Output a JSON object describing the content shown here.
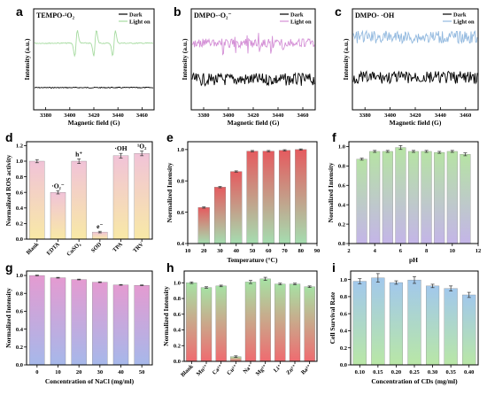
{
  "chart_data": [
    {
      "panel": "a",
      "type": "line",
      "title": "TEMPO-¹O₂",
      "xlabel": "Magnetic field (G)",
      "ylabel": "Intensity (a.u.)",
      "xlim": [
        3370,
        3470
      ],
      "xticks": [
        3380,
        3400,
        3420,
        3440,
        3460
      ],
      "legend_position": "top-right",
      "series": [
        {
          "name": "Dark",
          "color": "#000000",
          "shape": "flat",
          "level": 0.22
        },
        {
          "name": "Light on",
          "color": "#a6dba0",
          "shape": "tempo",
          "level": 0.66
        }
      ]
    },
    {
      "panel": "b",
      "type": "line",
      "title": "DMPO-·O₂⁻",
      "xlabel": "Magnetic field (G)",
      "ylabel": "Intensity (a.u.)",
      "xlim": [
        3370,
        3470
      ],
      "xticks": [
        3380,
        3400,
        3420,
        3440,
        3460
      ],
      "legend_position": "top-right",
      "series": [
        {
          "name": "Dark",
          "color": "#000000",
          "shape": "noise",
          "level": 0.3
        },
        {
          "name": "Light on",
          "color": "#d48fd6",
          "shape": "dmpo",
          "level": 0.66
        }
      ]
    },
    {
      "panel": "c",
      "type": "line",
      "title": "DMPO- ·OH",
      "xlabel": "Magnetic field (G)",
      "ylabel": "Intensity (a.u.)",
      "xlim": [
        3370,
        3470
      ],
      "xticks": [
        3380,
        3400,
        3420,
        3440,
        3460
      ],
      "legend_position": "top-right",
      "series": [
        {
          "name": "Dark",
          "color": "#000000",
          "shape": "noise",
          "level": 0.32
        },
        {
          "name": "Light on",
          "color": "#92b9df",
          "shape": "noise",
          "level": 0.72
        }
      ]
    },
    {
      "panel": "d",
      "type": "bar",
      "ylabel": "Normalized ROS activity",
      "ylim": [
        0,
        1.25
      ],
      "yticks": [
        0.0,
        0.2,
        0.4,
        0.6,
        0.8,
        1.0,
        1.2
      ],
      "ytick_labels": [
        "0.0",
        "0.2",
        "0.4",
        "0.6",
        "0.8",
        "1.0",
        "1.2"
      ],
      "categories": [
        "Blank",
        "EDTA",
        "CuSO₄",
        "SOD",
        "TPA",
        "TRV"
      ],
      "values": [
        1.0,
        0.6,
        1.0,
        0.09,
        1.07,
        1.1
      ],
      "errors": [
        0.02,
        0.02,
        0.03,
        0.01,
        0.03,
        0.03
      ],
      "gradient": [
        "#f1c3d8",
        "#f8e9a6"
      ],
      "rotate_labels": true,
      "annotations": [
        {
          "i": 1,
          "text": "·O₂⁻"
        },
        {
          "i": 2,
          "text": "h⁺"
        },
        {
          "i": 3,
          "text": "e⁻"
        },
        {
          "i": 4,
          "text": "·OH"
        },
        {
          "i": 5,
          "text": "¹O₂"
        }
      ]
    },
    {
      "panel": "e",
      "type": "bar",
      "xlabel": "Temperature (°C)",
      "ylabel": "Normalized Intensity",
      "xlim": [
        10,
        90
      ],
      "xticks": [
        10,
        20,
        30,
        40,
        50,
        60,
        70,
        80,
        90
      ],
      "ylim": [
        0.4,
        1.05
      ],
      "yticks": [
        0.4,
        0.6,
        0.8,
        1.0
      ],
      "ytick_labels": [
        "0.4",
        "0.6",
        "0.8",
        "1.0"
      ],
      "x": [
        20,
        30,
        40,
        50,
        60,
        70,
        80
      ],
      "values": [
        0.63,
        0.76,
        0.86,
        0.99,
        0.99,
        0.995,
        1.0
      ],
      "errors": [
        0.004,
        0.004,
        0.004,
        0.004,
        0.004,
        0.004,
        0.004
      ],
      "bar_width": 7,
      "gradient": [
        "#e55b5f",
        "#a5ddb0"
      ]
    },
    {
      "panel": "f",
      "type": "bar",
      "xlabel": "pH",
      "ylabel": "Normalized Intensity",
      "xlim": [
        2,
        12
      ],
      "xticks": [
        2,
        4,
        6,
        8,
        10,
        12
      ],
      "ylim": [
        0.0,
        1.05
      ],
      "yticks": [
        0.0,
        0.2,
        0.4,
        0.6,
        0.8,
        1.0
      ],
      "ytick_labels": [
        "0.0",
        "0.2",
        "0.4",
        "0.6",
        "0.8",
        "1.0"
      ],
      "x": [
        3,
        4,
        5,
        6,
        7,
        8,
        9,
        10,
        11
      ],
      "values": [
        0.87,
        0.95,
        0.95,
        0.99,
        0.95,
        0.95,
        0.94,
        0.95,
        0.92
      ],
      "errors": [
        0.01,
        0.01,
        0.01,
        0.02,
        0.01,
        0.01,
        0.01,
        0.01,
        0.015
      ],
      "bar_width": 0.8,
      "gradient": [
        "#b6e3a4",
        "#c4b5e8"
      ]
    },
    {
      "panel": "g",
      "type": "bar",
      "xlabel": "Concentration of NaCl (mg/ml)",
      "ylabel": "Normalized Intensity",
      "ylim": [
        0.0,
        1.05
      ],
      "yticks": [
        0.0,
        0.2,
        0.4,
        0.6,
        0.8,
        1.0
      ],
      "ytick_labels": [
        "0.0",
        "0.2",
        "0.4",
        "0.6",
        "0.8",
        "1.0"
      ],
      "categories": [
        "0",
        "10",
        "20",
        "30",
        "40",
        "50"
      ],
      "values": [
        1.0,
        0.975,
        0.955,
        0.925,
        0.895,
        0.89
      ],
      "errors": [
        0.004,
        0.004,
        0.004,
        0.004,
        0.004,
        0.004
      ],
      "gradient": [
        "#e49bd1",
        "#a6b8ea"
      ]
    },
    {
      "panel": "h",
      "type": "bar",
      "ylabel": "Normalized Intensity",
      "ylim": [
        0.0,
        1.15
      ],
      "yticks": [
        0.0,
        0.2,
        0.4,
        0.6,
        0.8,
        1.0
      ],
      "ytick_labels": [
        "0.0",
        "0.2",
        "0.4",
        "0.6",
        "0.8",
        "1.0"
      ],
      "categories": [
        "Blank",
        "Mn²⁺",
        "Ca²⁺",
        "Cu²⁺",
        "Na⁺",
        "Mg²⁺",
        "Li⁺",
        "Zn²⁺",
        "Ba²⁺"
      ],
      "values": [
        1.0,
        0.94,
        0.96,
        0.06,
        1.01,
        1.05,
        0.985,
        0.985,
        0.95
      ],
      "errors": [
        0.01,
        0.01,
        0.01,
        0.01,
        0.02,
        0.02,
        0.01,
        0.01,
        0.01
      ],
      "gradient": [
        "#a6e2a4",
        "#ef6b70"
      ],
      "rotate_labels": true
    },
    {
      "panel": "i",
      "type": "bar",
      "xlabel": "Concentration of CDs (mg/ml)",
      "ylabel": "Cell Survival Rate",
      "ylim": [
        0.0,
        1.1
      ],
      "yticks": [
        0.0,
        0.2,
        0.4,
        0.6,
        0.8,
        1.0
      ],
      "ytick_labels": [
        "0.0",
        "0.2",
        "0.4",
        "0.6",
        "0.8",
        "1.0"
      ],
      "categories": [
        "0.10",
        "0.15",
        "0.20",
        "0.25",
        "0.30",
        "0.35",
        "0.40"
      ],
      "values": [
        0.98,
        1.02,
        0.965,
        0.995,
        0.925,
        0.895,
        0.82
      ],
      "errors": [
        0.03,
        0.05,
        0.02,
        0.04,
        0.02,
        0.03,
        0.03
      ],
      "gradient": [
        "#a2c8ec",
        "#b9e7a6"
      ]
    }
  ]
}
